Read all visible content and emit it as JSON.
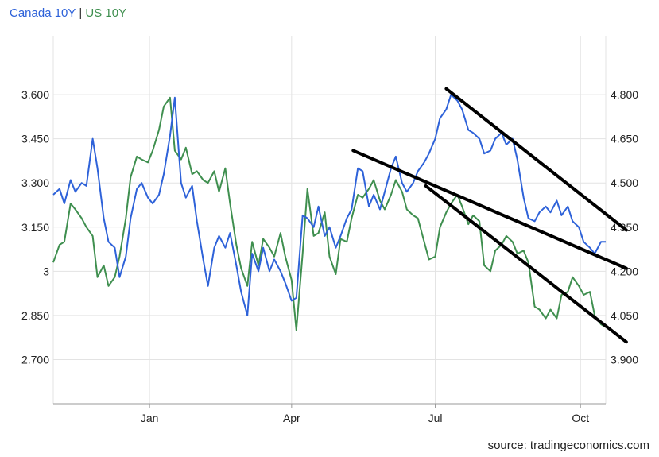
{
  "legend": {
    "series_a": "Canada 10Y",
    "separator": "|",
    "series_b": "US 10Y"
  },
  "source": "source: tradingeconomics.com",
  "colors": {
    "canada": "#2e62d9",
    "us": "#3f8f4f",
    "trendline": "#000000",
    "grid": "#e3e3e3",
    "axis": "#999999"
  },
  "chart_data": {
    "type": "line",
    "x_ticks": [
      "Jan",
      "Apr",
      "Jul",
      "Oct"
    ],
    "xlim": [
      "2024-11-01",
      "2025-10-17"
    ],
    "x_tick_dates": [
      "2025-01-01",
      "2025-04-01",
      "2025-07-01",
      "2025-10-01"
    ],
    "left_axis": {
      "ticks": [
        "3.600",
        "3.450",
        "3.300",
        "3.150",
        "3",
        "2.850",
        "2.700"
      ],
      "ylim": [
        2.55,
        3.8
      ]
    },
    "right_axis": {
      "ticks": [
        "4.800",
        "4.650",
        "4.500",
        "4.350",
        "4.200",
        "4.050",
        "3.900"
      ],
      "ylim": [
        3.75,
        5.0
      ]
    },
    "grid": true,
    "series": [
      {
        "name": "Canada 10Y",
        "axis": "left",
        "points": [
          [
            "2024-11-01",
            3.26
          ],
          [
            "2024-11-05",
            3.28
          ],
          [
            "2024-11-08",
            3.23
          ],
          [
            "2024-11-12",
            3.31
          ],
          [
            "2024-11-15",
            3.27
          ],
          [
            "2024-11-19",
            3.3
          ],
          [
            "2024-11-22",
            3.29
          ],
          [
            "2024-11-26",
            3.45
          ],
          [
            "2024-11-29",
            3.35
          ],
          [
            "2024-12-03",
            3.18
          ],
          [
            "2024-12-06",
            3.1
          ],
          [
            "2024-12-10",
            3.08
          ],
          [
            "2024-12-13",
            2.98
          ],
          [
            "2024-12-17",
            3.05
          ],
          [
            "2024-12-20",
            3.18
          ],
          [
            "2024-12-24",
            3.28
          ],
          [
            "2024-12-27",
            3.3
          ],
          [
            "2024-12-31",
            3.25
          ],
          [
            "2025-01-03",
            3.23
          ],
          [
            "2025-01-07",
            3.26
          ],
          [
            "2025-01-10",
            3.33
          ],
          [
            "2025-01-14",
            3.46
          ],
          [
            "2025-01-17",
            3.59
          ],
          [
            "2025-01-21",
            3.3
          ],
          [
            "2025-01-24",
            3.25
          ],
          [
            "2025-01-28",
            3.29
          ],
          [
            "2025-01-31",
            3.17
          ],
          [
            "2025-02-04",
            3.04
          ],
          [
            "2025-02-07",
            2.95
          ],
          [
            "2025-02-11",
            3.08
          ],
          [
            "2025-02-14",
            3.12
          ],
          [
            "2025-02-18",
            3.08
          ],
          [
            "2025-02-21",
            3.13
          ],
          [
            "2025-02-25",
            3.02
          ],
          [
            "2025-02-28",
            2.93
          ],
          [
            "2025-03-04",
            2.85
          ],
          [
            "2025-03-07",
            3.06
          ],
          [
            "2025-03-11",
            3.0
          ],
          [
            "2025-03-14",
            3.08
          ],
          [
            "2025-03-18",
            3.0
          ],
          [
            "2025-03-21",
            3.04
          ],
          [
            "2025-03-25",
            3.0
          ],
          [
            "2025-03-28",
            2.96
          ],
          [
            "2025-04-01",
            2.9
          ],
          [
            "2025-04-04",
            2.91
          ],
          [
            "2025-04-08",
            3.19
          ],
          [
            "2025-04-11",
            3.18
          ],
          [
            "2025-04-15",
            3.15
          ],
          [
            "2025-04-18",
            3.22
          ],
          [
            "2025-04-22",
            3.12
          ],
          [
            "2025-04-25",
            3.15
          ],
          [
            "2025-04-29",
            3.08
          ],
          [
            "2025-05-02",
            3.12
          ],
          [
            "2025-05-06",
            3.18
          ],
          [
            "2025-05-09",
            3.21
          ],
          [
            "2025-05-13",
            3.35
          ],
          [
            "2025-05-16",
            3.34
          ],
          [
            "2025-05-20",
            3.22
          ],
          [
            "2025-05-23",
            3.26
          ],
          [
            "2025-05-27",
            3.21
          ],
          [
            "2025-05-30",
            3.27
          ],
          [
            "2025-06-03",
            3.35
          ],
          [
            "2025-06-06",
            3.39
          ],
          [
            "2025-06-10",
            3.3
          ],
          [
            "2025-06-13",
            3.27
          ],
          [
            "2025-06-17",
            3.3
          ],
          [
            "2025-06-20",
            3.34
          ],
          [
            "2025-06-24",
            3.37
          ],
          [
            "2025-06-27",
            3.4
          ],
          [
            "2025-07-01",
            3.45
          ],
          [
            "2025-07-04",
            3.52
          ],
          [
            "2025-07-08",
            3.55
          ],
          [
            "2025-07-11",
            3.6
          ],
          [
            "2025-07-15",
            3.58
          ],
          [
            "2025-07-18",
            3.55
          ],
          [
            "2025-07-22",
            3.48
          ],
          [
            "2025-07-25",
            3.47
          ],
          [
            "2025-07-29",
            3.45
          ],
          [
            "2025-08-01",
            3.4
          ],
          [
            "2025-08-05",
            3.41
          ],
          [
            "2025-08-08",
            3.45
          ],
          [
            "2025-08-12",
            3.47
          ],
          [
            "2025-08-15",
            3.43
          ],
          [
            "2025-08-19",
            3.45
          ],
          [
            "2025-08-22",
            3.38
          ],
          [
            "2025-08-26",
            3.25
          ],
          [
            "2025-08-29",
            3.18
          ],
          [
            "2025-09-02",
            3.17
          ],
          [
            "2025-09-05",
            3.2
          ],
          [
            "2025-09-09",
            3.22
          ],
          [
            "2025-09-12",
            3.2
          ],
          [
            "2025-09-16",
            3.24
          ],
          [
            "2025-09-19",
            3.19
          ],
          [
            "2025-09-23",
            3.22
          ],
          [
            "2025-09-26",
            3.17
          ],
          [
            "2025-09-30",
            3.15
          ],
          [
            "2025-10-03",
            3.1
          ],
          [
            "2025-10-07",
            3.08
          ],
          [
            "2025-10-10",
            3.06
          ],
          [
            "2025-10-14",
            3.1
          ],
          [
            "2025-10-17",
            3.1
          ]
        ]
      },
      {
        "name": "US 10Y",
        "axis": "right",
        "points": [
          [
            "2024-11-01",
            4.23
          ],
          [
            "2024-11-05",
            4.29
          ],
          [
            "2024-11-08",
            4.3
          ],
          [
            "2024-11-12",
            4.43
          ],
          [
            "2024-11-15",
            4.41
          ],
          [
            "2024-11-19",
            4.38
          ],
          [
            "2024-11-22",
            4.35
          ],
          [
            "2024-11-26",
            4.32
          ],
          [
            "2024-11-29",
            4.18
          ],
          [
            "2024-12-03",
            4.22
          ],
          [
            "2024-12-06",
            4.15
          ],
          [
            "2024-12-10",
            4.18
          ],
          [
            "2024-12-13",
            4.25
          ],
          [
            "2024-12-17",
            4.38
          ],
          [
            "2024-12-20",
            4.52
          ],
          [
            "2024-12-24",
            4.59
          ],
          [
            "2024-12-27",
            4.58
          ],
          [
            "2024-12-31",
            4.57
          ],
          [
            "2025-01-03",
            4.61
          ],
          [
            "2025-01-07",
            4.68
          ],
          [
            "2025-01-10",
            4.76
          ],
          [
            "2025-01-14",
            4.79
          ],
          [
            "2025-01-17",
            4.61
          ],
          [
            "2025-01-21",
            4.58
          ],
          [
            "2025-01-24",
            4.62
          ],
          [
            "2025-01-28",
            4.53
          ],
          [
            "2025-01-31",
            4.54
          ],
          [
            "2025-02-04",
            4.51
          ],
          [
            "2025-02-07",
            4.5
          ],
          [
            "2025-02-11",
            4.54
          ],
          [
            "2025-02-14",
            4.47
          ],
          [
            "2025-02-18",
            4.55
          ],
          [
            "2025-02-21",
            4.43
          ],
          [
            "2025-02-25",
            4.29
          ],
          [
            "2025-02-28",
            4.21
          ],
          [
            "2025-03-04",
            4.15
          ],
          [
            "2025-03-07",
            4.3
          ],
          [
            "2025-03-11",
            4.22
          ],
          [
            "2025-03-14",
            4.31
          ],
          [
            "2025-03-18",
            4.28
          ],
          [
            "2025-03-21",
            4.25
          ],
          [
            "2025-03-25",
            4.33
          ],
          [
            "2025-03-28",
            4.25
          ],
          [
            "2025-04-01",
            4.17
          ],
          [
            "2025-04-04",
            4.0
          ],
          [
            "2025-04-08",
            4.26
          ],
          [
            "2025-04-11",
            4.48
          ],
          [
            "2025-04-15",
            4.32
          ],
          [
            "2025-04-18",
            4.33
          ],
          [
            "2025-04-22",
            4.4
          ],
          [
            "2025-04-25",
            4.25
          ],
          [
            "2025-04-29",
            4.19
          ],
          [
            "2025-05-02",
            4.31
          ],
          [
            "2025-05-06",
            4.3
          ],
          [
            "2025-05-09",
            4.38
          ],
          [
            "2025-05-13",
            4.46
          ],
          [
            "2025-05-16",
            4.45
          ],
          [
            "2025-05-20",
            4.48
          ],
          [
            "2025-05-23",
            4.51
          ],
          [
            "2025-05-27",
            4.44
          ],
          [
            "2025-05-30",
            4.41
          ],
          [
            "2025-06-03",
            4.46
          ],
          [
            "2025-06-06",
            4.51
          ],
          [
            "2025-06-10",
            4.47
          ],
          [
            "2025-06-13",
            4.41
          ],
          [
            "2025-06-17",
            4.39
          ],
          [
            "2025-06-20",
            4.38
          ],
          [
            "2025-06-24",
            4.3
          ],
          [
            "2025-06-27",
            4.24
          ],
          [
            "2025-07-01",
            4.25
          ],
          [
            "2025-07-04",
            4.35
          ],
          [
            "2025-07-08",
            4.4
          ],
          [
            "2025-07-11",
            4.43
          ],
          [
            "2025-07-15",
            4.46
          ],
          [
            "2025-07-18",
            4.42
          ],
          [
            "2025-07-22",
            4.36
          ],
          [
            "2025-07-25",
            4.39
          ],
          [
            "2025-07-29",
            4.37
          ],
          [
            "2025-08-01",
            4.22
          ],
          [
            "2025-08-05",
            4.2
          ],
          [
            "2025-08-08",
            4.27
          ],
          [
            "2025-08-12",
            4.29
          ],
          [
            "2025-08-15",
            4.32
          ],
          [
            "2025-08-19",
            4.3
          ],
          [
            "2025-08-22",
            4.26
          ],
          [
            "2025-08-26",
            4.27
          ],
          [
            "2025-08-29",
            4.23
          ],
          [
            "2025-09-02",
            4.08
          ],
          [
            "2025-09-05",
            4.07
          ],
          [
            "2025-09-09",
            4.04
          ],
          [
            "2025-09-12",
            4.07
          ],
          [
            "2025-09-16",
            4.04
          ],
          [
            "2025-09-19",
            4.12
          ],
          [
            "2025-09-23",
            4.13
          ],
          [
            "2025-09-26",
            4.18
          ],
          [
            "2025-09-30",
            4.15
          ],
          [
            "2025-10-03",
            4.12
          ],
          [
            "2025-10-07",
            4.13
          ],
          [
            "2025-10-10",
            4.05
          ],
          [
            "2025-10-14",
            4.02
          ],
          [
            "2025-10-17",
            4.01
          ]
        ]
      }
    ],
    "annotations": [
      {
        "type": "trendline",
        "axis": "left",
        "from": [
          "2025-07-08",
          3.62
        ],
        "to": [
          "2025-10-30",
          3.14
        ]
      },
      {
        "type": "trendline",
        "axis": "left",
        "from": [
          "2025-05-10",
          3.41
        ],
        "to": [
          "2025-10-30",
          3.01
        ]
      },
      {
        "type": "trendline",
        "axis": "left",
        "from": [
          "2025-06-25",
          3.29
        ],
        "to": [
          "2025-10-30",
          2.76
        ]
      }
    ]
  }
}
